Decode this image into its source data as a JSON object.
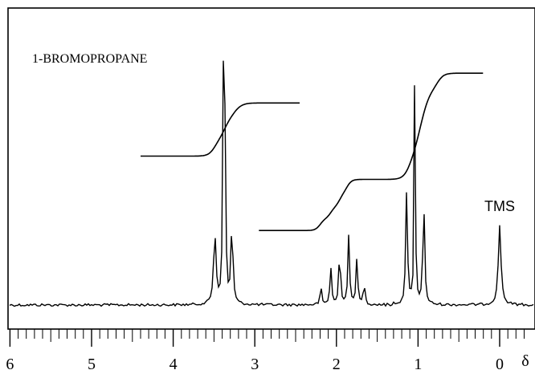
{
  "chart_data": {
    "type": "line",
    "title": "1-BROMOPROPANE",
    "xlabel": "δ",
    "ylabel": "",
    "xlim": [
      6.0,
      -0.35
    ],
    "x_reversed": true,
    "ticks": {
      "major": [
        6,
        5,
        4,
        3,
        2,
        1,
        0
      ],
      "labels": [
        "6",
        "5",
        "4",
        "3",
        "2",
        "1",
        "0"
      ],
      "minor_step": 0.1
    },
    "grid": false,
    "legend": "none",
    "line_color": "#000000",
    "series": [
      {
        "type": "spectrum",
        "baseline": 0.0,
        "peaks": [
          {
            "x": 3.49,
            "height": 0.33,
            "width": 0.018
          },
          {
            "x": 3.385,
            "height": 1.0,
            "width": 0.01
          },
          {
            "x": 3.365,
            "height": 0.72,
            "width": 0.01
          },
          {
            "x": 3.28,
            "height": 0.38,
            "width": 0.014
          },
          {
            "x": 2.19,
            "height": 0.08,
            "width": 0.012
          },
          {
            "x": 2.07,
            "height": 0.18,
            "width": 0.012
          },
          {
            "x": 1.96,
            "height": 0.27,
            "width": 0.012
          },
          {
            "x": 1.85,
            "height": 0.32,
            "width": 0.012
          },
          {
            "x": 1.75,
            "height": 0.22,
            "width": 0.012
          },
          {
            "x": 1.66,
            "height": 0.1,
            "width": 0.012
          },
          {
            "x": 1.14,
            "height": 0.52,
            "width": 0.013
          },
          {
            "x": 1.04,
            "height": 1.18,
            "width": 0.008
          },
          {
            "x": 0.93,
            "height": 0.48,
            "width": 0.013
          },
          {
            "x": 0.0,
            "height": 0.37,
            "width": 0.02
          }
        ],
        "label": "TMS",
        "label_x": 0.0
      },
      {
        "type": "integral",
        "segments": [
          {
            "x_start": 4.4,
            "x_end": 2.45,
            "y_start": 0.7,
            "y_end": 0.95,
            "steps": [
              {
                "x": 3.49,
                "rise": 0.08,
                "width": 0.04
              },
              {
                "x": 3.37,
                "rise": 0.09,
                "width": 0.04
              },
              {
                "x": 3.25,
                "rise": 0.08,
                "width": 0.05
              }
            ]
          },
          {
            "x_start": 2.95,
            "x_end": 0.2,
            "y_start": 0.35,
            "y_end": 1.09,
            "steps": [
              {
                "x": 2.2,
                "rise": 0.06,
                "width": 0.03
              },
              {
                "x": 2.07,
                "rise": 0.06,
                "width": 0.03
              },
              {
                "x": 1.96,
                "rise": 0.07,
                "width": 0.03
              },
              {
                "x": 1.87,
                "rise": 0.07,
                "width": 0.03
              },
              {
                "x": 1.11,
                "rise": 0.09,
                "width": 0.04
              },
              {
                "x": 1.0,
                "rise": 0.2,
                "width": 0.05
              },
              {
                "x": 0.93,
                "rise": 0.17,
                "width": 0.05
              },
              {
                "x": 0.76,
                "rise": 0.08,
                "width": 0.04
              }
            ]
          }
        ]
      }
    ]
  }
}
